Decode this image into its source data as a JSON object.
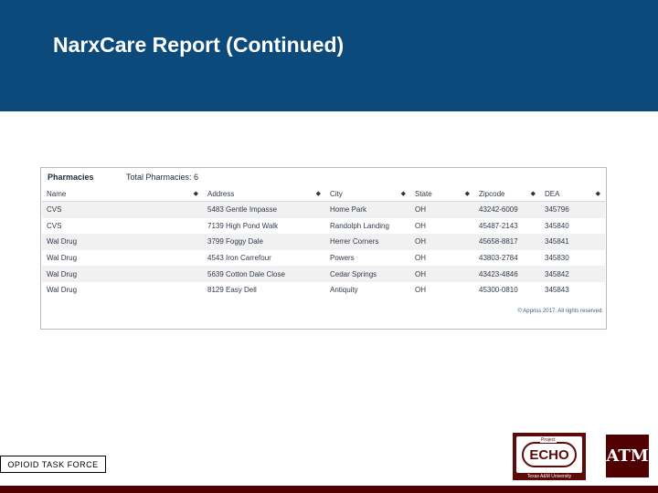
{
  "slide": {
    "title": "NarxCare Report (Continued)",
    "footer_label": "OPIOID TASK FORCE"
  },
  "pharmacies": {
    "heading": "Pharmacies",
    "total_label": "Total Pharmacies: 6",
    "columns": [
      "Name",
      "Address",
      "City",
      "State",
      "Zipcode",
      "DEA"
    ],
    "rows": [
      [
        "CVS",
        "5483 Gentle Impasse",
        "Home Park",
        "OH",
        "43242-6009",
        "345796"
      ],
      [
        "CVS",
        "7139 High Pond Walk",
        "Randolph Landing",
        "OH",
        "45487-2143",
        "345840"
      ],
      [
        "Wal Drug",
        "3799 Foggy Dale",
        "Herrer Corners",
        "OH",
        "45658-8817",
        "345841"
      ],
      [
        "Wal Drug",
        "4543 Iron Carrefour",
        "Powers",
        "OH",
        "43803-2784",
        "345830"
      ],
      [
        "Wal Drug",
        "5639 Cotton Dale Close",
        "Cedar Springs",
        "OH",
        "43423-4846",
        "345842"
      ],
      [
        "Wal Drug",
        "8129 Easy Dell",
        "Antiquity",
        "OH",
        "45300-0810",
        "345843"
      ]
    ],
    "copyright": "© Appriss 2017. All rights reserved."
  },
  "logos": {
    "echo_project": "Project",
    "echo_text": "ECHO",
    "echo_sub": "Texas A&M University",
    "atm_text": "ATM"
  },
  "colors": {
    "header_bg": "#0d4a7c",
    "maroon": "#500000"
  }
}
